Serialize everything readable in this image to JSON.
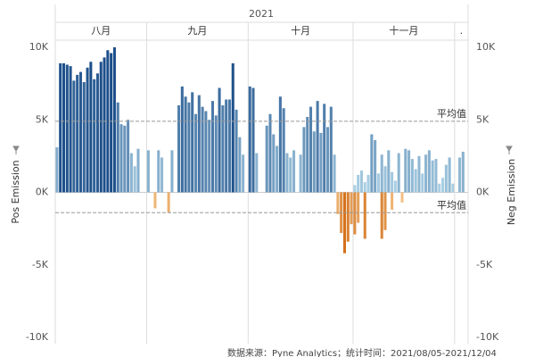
{
  "chart_data": {
    "type": "bar",
    "header": "2021",
    "y_title": "Pos Emission",
    "y2_title": "Neg Emission",
    "ylim": [
      -10000,
      10000
    ],
    "yticks": [
      {
        "value": 10000,
        "label": "10K"
      },
      {
        "value": 5000,
        "label": "5K"
      },
      {
        "value": 0,
        "label": "0K"
      },
      {
        "value": -5000,
        "label": "-5K"
      },
      {
        "value": -10000,
        "label": "-10K"
      }
    ],
    "y2lim": [
      -10000,
      10000
    ],
    "y2ticks": [
      {
        "value": 10000,
        "label": "10K"
      },
      {
        "value": 5000,
        "label": "5K"
      },
      {
        "value": 0,
        "label": "0K"
      },
      {
        "value": -5000,
        "label": "-5K"
      },
      {
        "value": -10000,
        "label": "-10K"
      }
    ],
    "reference_lines": [
      {
        "value": 4900,
        "label": "平均值"
      },
      {
        "value": -1400,
        "label": "平均值"
      }
    ],
    "pos_colors": [
      "#a9cfe3",
      "#1c4f8a"
    ],
    "neg_colors": [
      "#f4c48a",
      "#d4721c"
    ],
    "groups": [
      {
        "label": "八月",
        "pos": [
          3100,
          8900,
          8900,
          8800,
          8700,
          7700,
          8100,
          8300,
          7600,
          8600,
          9000,
          7800,
          8200,
          9000,
          9300,
          9800,
          9600,
          10000,
          6200,
          4700,
          4600,
          5000,
          2700,
          1800,
          3000,
          null,
          null
        ],
        "neg": [
          null,
          null,
          null,
          null,
          null,
          null,
          null,
          null,
          null,
          null,
          null,
          null,
          null,
          null,
          null,
          null,
          null,
          null,
          null,
          null,
          null,
          null,
          null,
          null,
          null,
          null,
          null
        ]
      },
      {
        "label": "九月",
        "pos": [
          2900,
          null,
          null,
          2900,
          2400,
          null,
          null,
          2900,
          null,
          6000,
          7300,
          6600,
          6200,
          6900,
          5400,
          6700,
          5900,
          5600,
          5000,
          6300,
          5300,
          7200,
          6000,
          6400,
          6400,
          8900,
          5700,
          3800,
          2600,
          null
        ],
        "neg": [
          null,
          null,
          -1100,
          null,
          null,
          null,
          -1400,
          null,
          null,
          null,
          null,
          null,
          null,
          null,
          null,
          null,
          null,
          null,
          null,
          null,
          null,
          null,
          null,
          null,
          null,
          null,
          null,
          null,
          null,
          null
        ]
      },
      {
        "label": "十月",
        "pos": [
          7300,
          7200,
          2700,
          null,
          null,
          4600,
          5400,
          4000,
          3200,
          6600,
          5800,
          2700,
          2400,
          2900,
          null,
          2600,
          4500,
          5200,
          5900,
          4200,
          6300,
          4100,
          6100,
          4500,
          5900,
          2600,
          null,
          null,
          null,
          null,
          null
        ],
        "neg": [
          null,
          null,
          null,
          null,
          null,
          null,
          null,
          null,
          null,
          null,
          null,
          null,
          null,
          null,
          null,
          null,
          null,
          null,
          null,
          null,
          null,
          null,
          null,
          null,
          null,
          null,
          -1500,
          -2800,
          -4200,
          -3400,
          -2200
        ]
      },
      {
        "label": "十一月",
        "pos": [
          500,
          1200,
          1500,
          700,
          1200,
          4000,
          3600,
          1300,
          2600,
          1800,
          2900,
          1400,
          800,
          2700,
          null,
          3000,
          2900,
          2300,
          1600,
          2500,
          1300,
          2600,
          2900,
          2200,
          2300,
          600,
          1000,
          1900,
          2400,
          600
        ],
        "neg": [
          -2900,
          -2100,
          null,
          -3200,
          null,
          null,
          null,
          null,
          -3200,
          -2600,
          null,
          -1200,
          null,
          null,
          -700,
          null,
          null,
          null,
          null,
          null,
          null,
          null,
          null,
          null,
          null,
          null,
          null,
          null,
          null,
          null
        ]
      },
      {
        "label": ".",
        "pos": [
          null,
          2400,
          2800,
          null
        ],
        "neg": [
          null,
          null,
          null,
          null
        ]
      }
    ],
    "source": "数据来源：Pyne Analytics；统计时间：2021/08/05-2021/12/04"
  }
}
